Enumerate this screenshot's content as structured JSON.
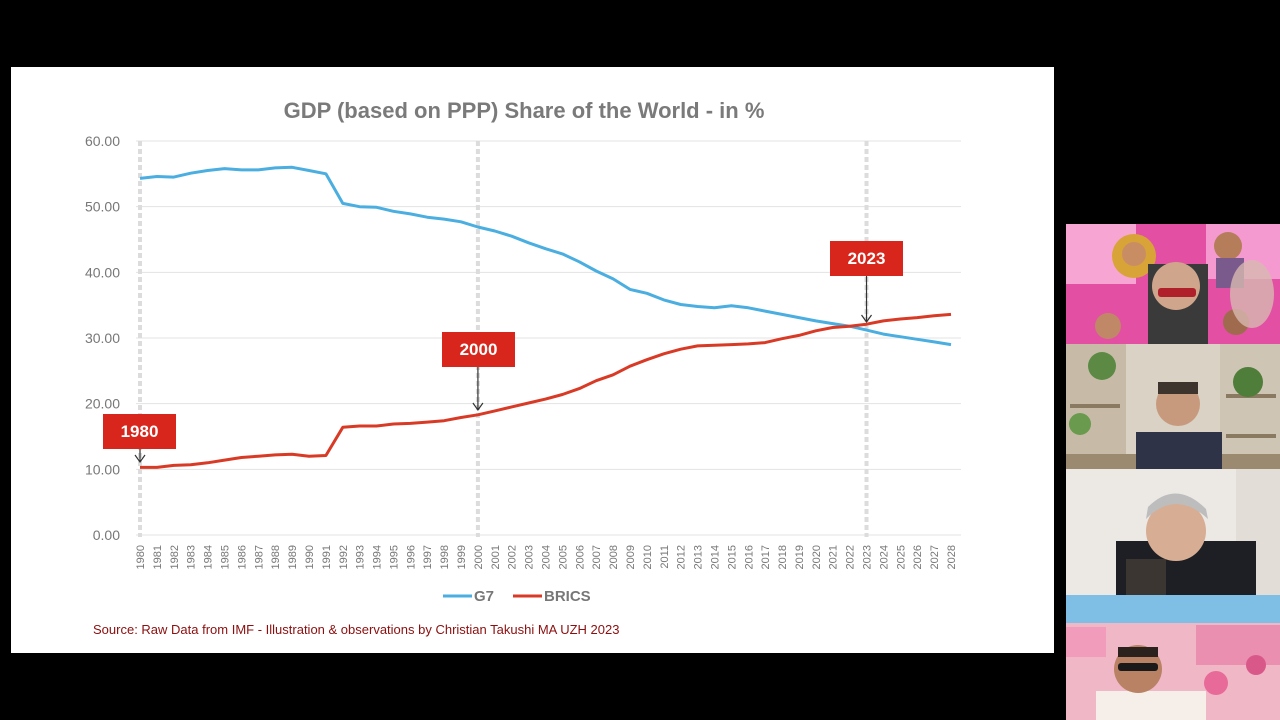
{
  "slide": {
    "source": "Source: Raw Data from IMF - Illustration & observations by Christian Takushi MA UZH 2023",
    "callouts": [
      "1980",
      "2000",
      "2023"
    ]
  },
  "colors": {
    "g7": "#4aaee0",
    "brics": "#d93a25",
    "callout": "#d9261c",
    "source": "#8b0f0f"
  },
  "chart_data": {
    "type": "line",
    "title": "GDP (based on PPP) Share of the World - in %",
    "xlabel": "",
    "ylabel": "",
    "ylim": [
      0,
      60
    ],
    "yticks": [
      "0.00",
      "10.00",
      "20.00",
      "30.00",
      "40.00",
      "50.00",
      "60.00"
    ],
    "grid": true,
    "legend": "bottom-center",
    "x": [
      1980,
      1981,
      1982,
      1983,
      1984,
      1985,
      1986,
      1987,
      1988,
      1989,
      1990,
      1991,
      1992,
      1993,
      1994,
      1995,
      1996,
      1997,
      1998,
      1999,
      2000,
      2001,
      2002,
      2003,
      2004,
      2005,
      2006,
      2007,
      2008,
      2009,
      2010,
      2011,
      2012,
      2013,
      2014,
      2015,
      2016,
      2017,
      2018,
      2019,
      2020,
      2021,
      2022,
      2023,
      2024,
      2025,
      2026,
      2027,
      2028
    ],
    "series": [
      {
        "name": "G7",
        "values": [
          54.3,
          54.6,
          54.5,
          55.1,
          55.5,
          55.8,
          55.6,
          55.6,
          55.9,
          56.0,
          55.5,
          55.0,
          50.5,
          50.0,
          49.9,
          49.3,
          48.9,
          48.4,
          48.1,
          47.7,
          46.9,
          46.3,
          45.5,
          44.5,
          43.6,
          42.8,
          41.6,
          40.2,
          39.0,
          37.4,
          36.8,
          35.8,
          35.1,
          34.8,
          34.6,
          34.9,
          34.6,
          34.1,
          33.6,
          33.1,
          32.6,
          32.2,
          31.8,
          31.2,
          30.6,
          30.2,
          29.8,
          29.4,
          29.0
        ]
      },
      {
        "name": "BRICS",
        "values": [
          10.3,
          10.3,
          10.6,
          10.7,
          11.0,
          11.4,
          11.8,
          12.0,
          12.2,
          12.3,
          12.0,
          12.1,
          16.4,
          16.6,
          16.6,
          16.9,
          17.0,
          17.2,
          17.4,
          17.9,
          18.3,
          18.9,
          19.5,
          20.1,
          20.7,
          21.4,
          22.3,
          23.5,
          24.4,
          25.7,
          26.7,
          27.6,
          28.3,
          28.8,
          28.9,
          29.0,
          29.1,
          29.3,
          29.9,
          30.4,
          31.1,
          31.6,
          31.8,
          32.1,
          32.6,
          32.9,
          33.1,
          33.4,
          33.6
        ]
      }
    ]
  },
  "participants": [
    {
      "name": ""
    },
    {
      "name": ""
    },
    {
      "name": ""
    },
    {
      "name": ""
    }
  ]
}
